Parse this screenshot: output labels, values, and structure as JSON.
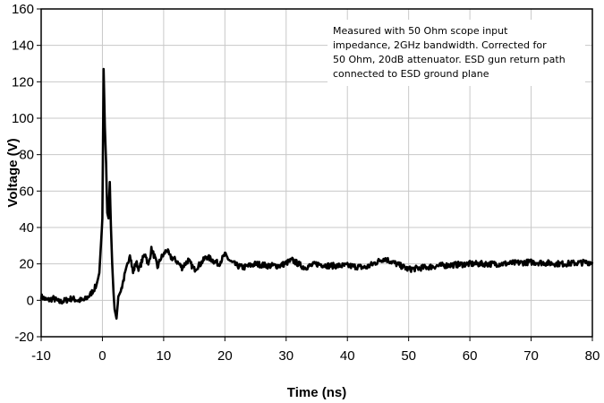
{
  "chart_data": {
    "type": "line",
    "xlabel": "Time (ns)",
    "ylabel": "Voltage (V)",
    "xlim": [
      -10,
      80
    ],
    "ylim": [
      -20,
      160
    ],
    "x_ticks": [
      -10,
      0,
      10,
      20,
      30,
      40,
      50,
      60,
      70,
      80
    ],
    "y_ticks": [
      -20,
      0,
      20,
      40,
      60,
      80,
      100,
      120,
      140,
      160
    ],
    "grid": true,
    "line_color": "#000000",
    "annotation": [
      "Measured with 50 Ohm scope input",
      "impedance, 2GHz bandwidth.  Corrected for",
      "50 Ohm, 20dB attenuator. ESD gun return path",
      "connected to ESD ground plane"
    ],
    "series": [
      {
        "x": [
          -10,
          -9,
          -8,
          -7,
          -6,
          -5,
          -4,
          -3,
          -2,
          -1,
          -0.5,
          0,
          0.2,
          0.4,
          0.6,
          0.8,
          1.0,
          1.2,
          1.4,
          1.6,
          1.8,
          2.0,
          2.3,
          2.6,
          3.0,
          3.5,
          4.0,
          4.5,
          5.0,
          5.5,
          6.0,
          6.5,
          7.0,
          7.5,
          8.0,
          8.5,
          9.0,
          9.5,
          10.0,
          10.5,
          11,
          12,
          13,
          14,
          15,
          16,
          17,
          18,
          19,
          20,
          21,
          22,
          23,
          25,
          27,
          29,
          31,
          33,
          35,
          37,
          40,
          43,
          46,
          50,
          55,
          60,
          65,
          70,
          75,
          80
        ],
        "y": [
          2,
          0,
          1,
          -1,
          0,
          1,
          0,
          0,
          3,
          8,
          15,
          45,
          127,
          95,
          75,
          48,
          45,
          65,
          40,
          20,
          5,
          -5,
          -10,
          2,
          5,
          12,
          18,
          26,
          15,
          21,
          17,
          22,
          26,
          19,
          28,
          24,
          18,
          23,
          25,
          28,
          24,
          22,
          18,
          22,
          17,
          20,
          24,
          22,
          20,
          25,
          21,
          19,
          18,
          20,
          19,
          19,
          22,
          18,
          20,
          19,
          19,
          18,
          23,
          17,
          19,
          20,
          20,
          21,
          20,
          21
        ]
      }
    ]
  }
}
